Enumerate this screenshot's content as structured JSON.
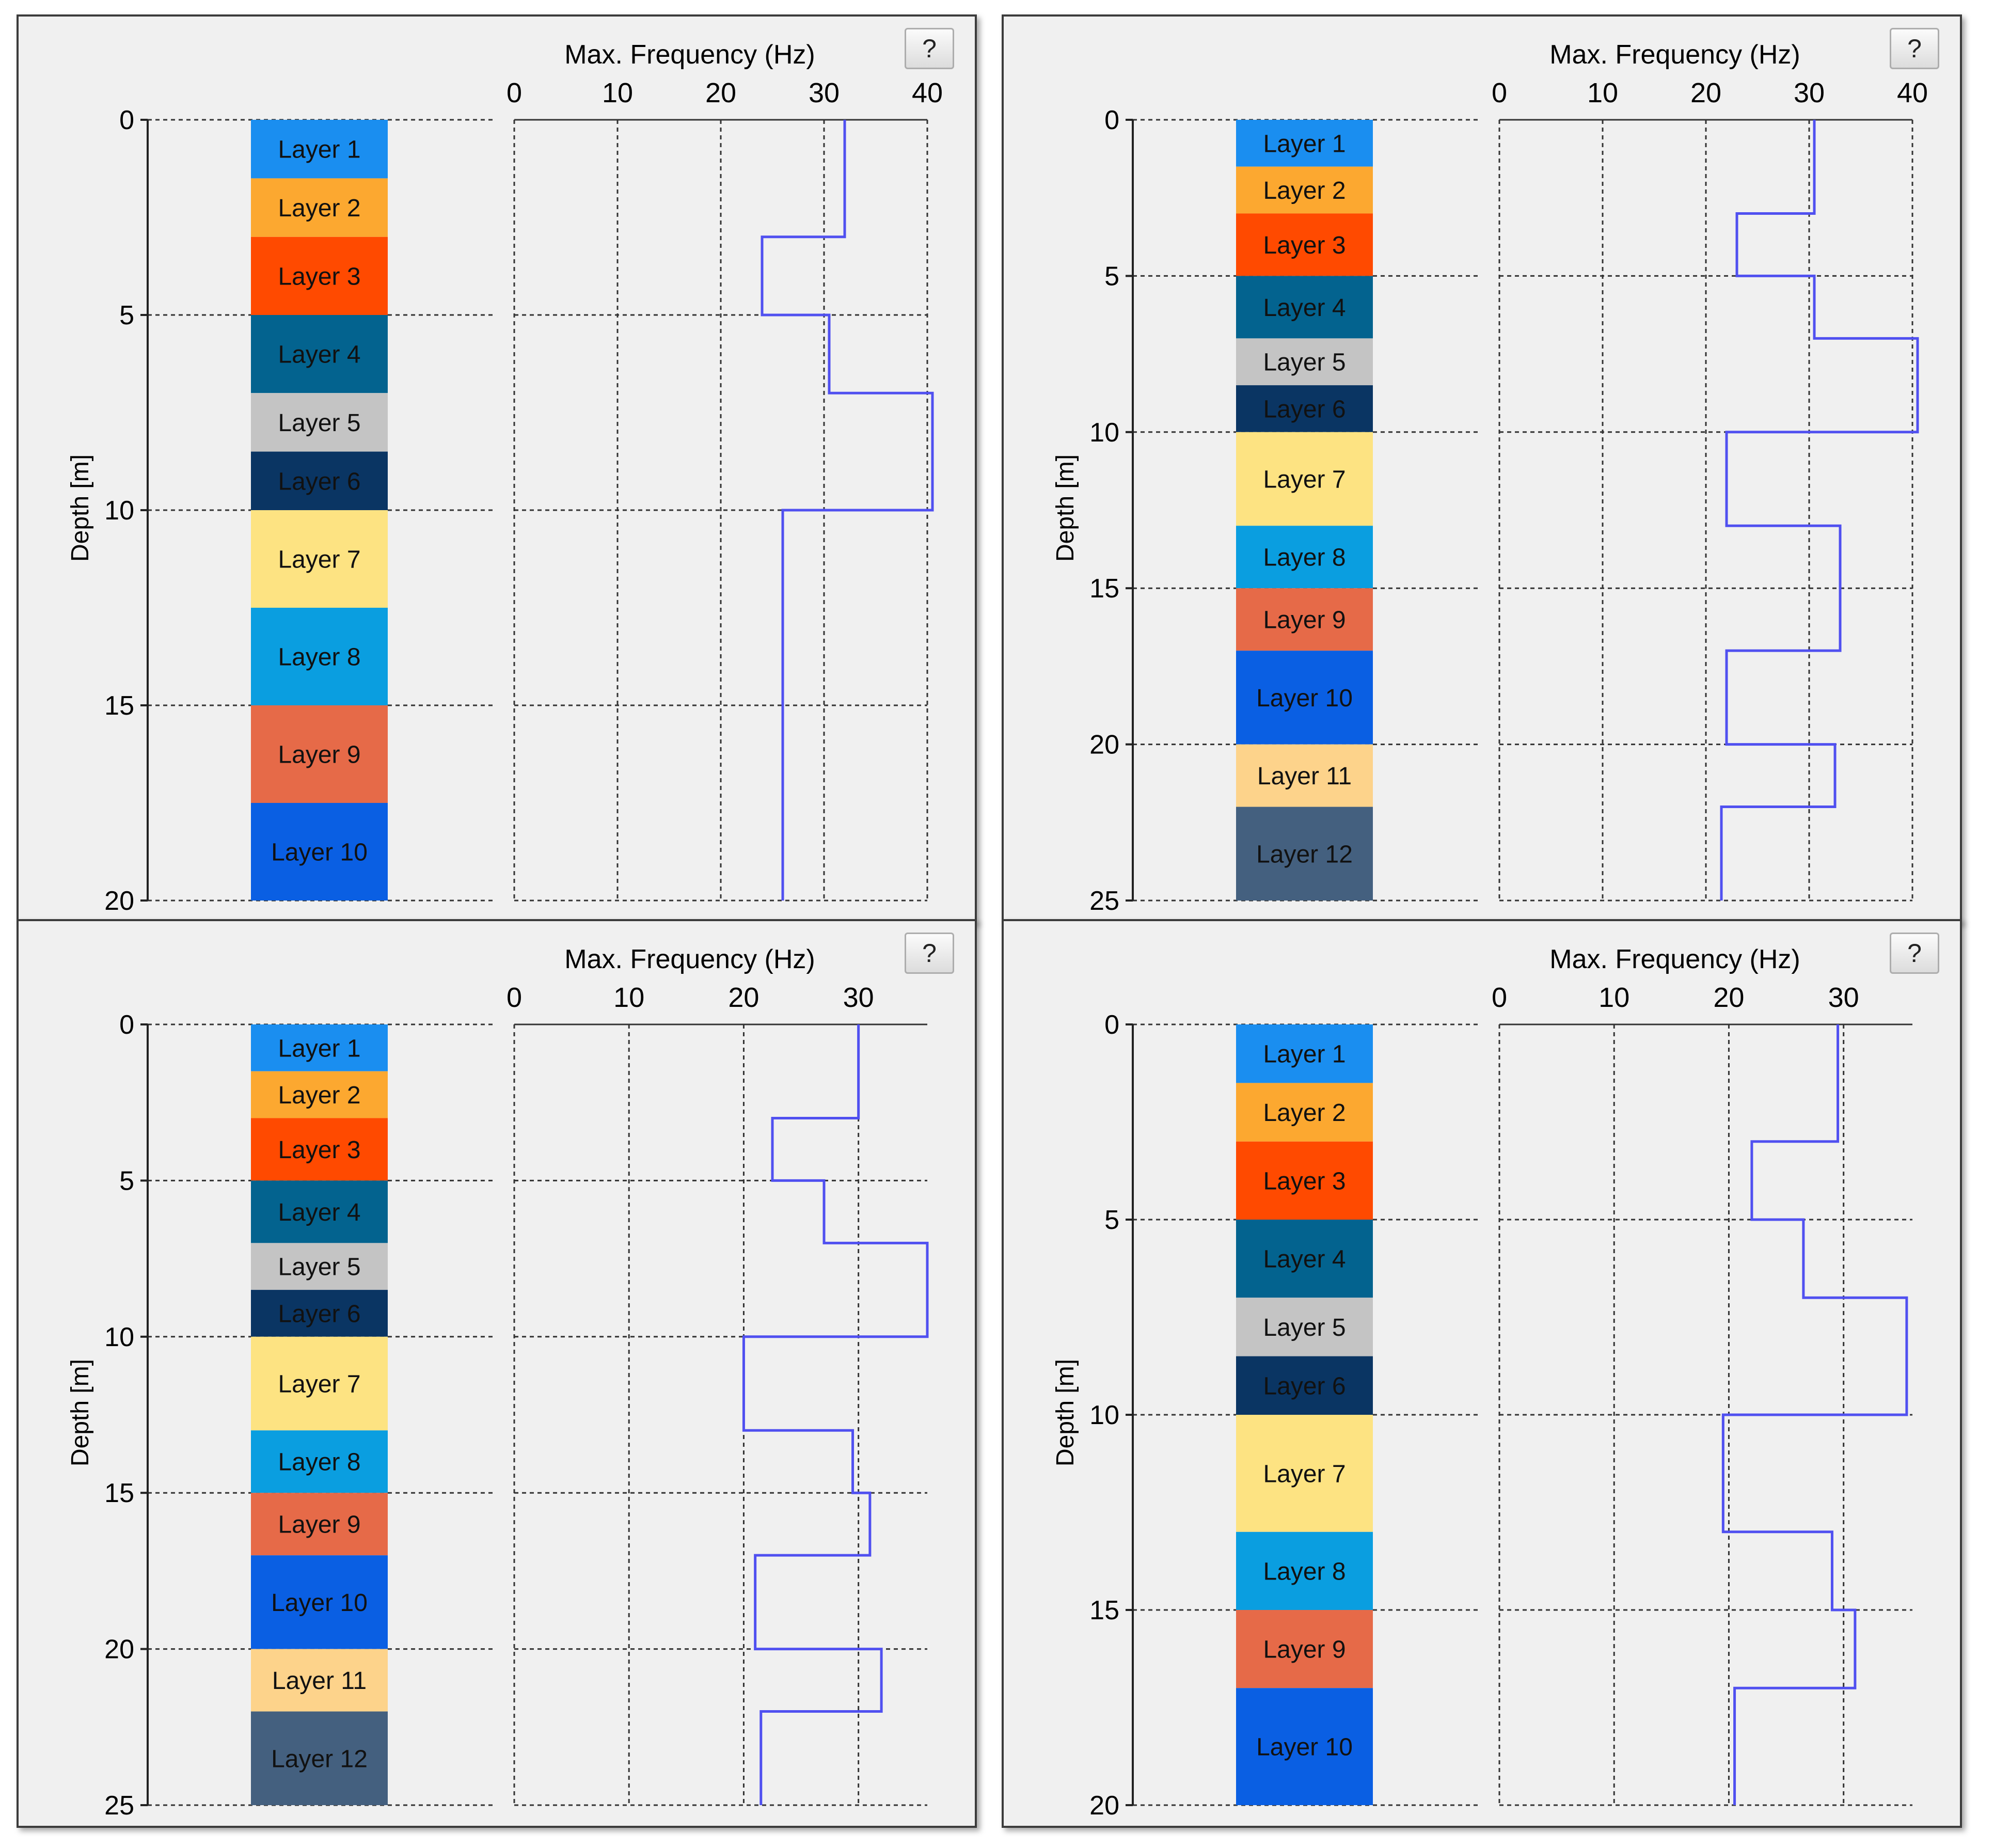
{
  "chart_data": [
    {
      "type": "step-line",
      "title": "Max. Frequency (Hz)",
      "ylabel": "Depth [m]",
      "help_label": "?",
      "depth_range": [
        0,
        20
      ],
      "depth_ticks": [
        0,
        5,
        10,
        15,
        20
      ],
      "freq_range": [
        0,
        40
      ],
      "freq_ticks": [
        0,
        10,
        20,
        30,
        40
      ],
      "line_color": "#5050f0",
      "layers": [
        {
          "label": "Layer 1",
          "top": 0,
          "bottom": 1.5,
          "color": "#1a8ef0"
        },
        {
          "label": "Layer 2",
          "top": 1.5,
          "bottom": 3.0,
          "color": "#fca830"
        },
        {
          "label": "Layer 3",
          "top": 3.0,
          "bottom": 5.0,
          "color": "#ff4a00"
        },
        {
          "label": "Layer 4",
          "top": 5.0,
          "bottom": 7.0,
          "color": "#03638f"
        },
        {
          "label": "Layer 5",
          "top": 7.0,
          "bottom": 8.5,
          "color": "#c4c4c4"
        },
        {
          "label": "Layer 6",
          "top": 8.5,
          "bottom": 10.0,
          "color": "#0a3563"
        },
        {
          "label": "Layer 7",
          "top": 10.0,
          "bottom": 12.5,
          "color": "#fde382"
        },
        {
          "label": "Layer 8",
          "top": 12.5,
          "bottom": 15.0,
          "color": "#0a9ee0"
        },
        {
          "label": "Layer 9",
          "top": 15.0,
          "bottom": 17.5,
          "color": "#e66a48"
        },
        {
          "label": "Layer 10",
          "top": 17.5,
          "bottom": 20.0,
          "color": "#0a5fe3"
        }
      ],
      "freq_profile": [
        {
          "top": 0,
          "bottom": 3.0,
          "freq": 32
        },
        {
          "top": 3.0,
          "bottom": 5.0,
          "freq": 24
        },
        {
          "top": 5.0,
          "bottom": 7.0,
          "freq": 30.5
        },
        {
          "top": 7.0,
          "bottom": 10.0,
          "freq": 40.5
        },
        {
          "top": 10.0,
          "bottom": 20.0,
          "freq": 26
        }
      ]
    },
    {
      "type": "step-line",
      "title": "Max. Frequency (Hz)",
      "ylabel": "Depth [m]",
      "help_label": "?",
      "depth_range": [
        0,
        25
      ],
      "depth_ticks": [
        0,
        5,
        10,
        15,
        20,
        25
      ],
      "freq_range": [
        0,
        40
      ],
      "freq_ticks": [
        0,
        10,
        20,
        30,
        40
      ],
      "line_color": "#5050f0",
      "layers": [
        {
          "label": "Layer 1",
          "top": 0,
          "bottom": 1.5,
          "color": "#1a8ef0"
        },
        {
          "label": "Layer 2",
          "top": 1.5,
          "bottom": 3.0,
          "color": "#fca830"
        },
        {
          "label": "Layer 3",
          "top": 3.0,
          "bottom": 5.0,
          "color": "#ff4a00"
        },
        {
          "label": "Layer 4",
          "top": 5.0,
          "bottom": 7.0,
          "color": "#03638f"
        },
        {
          "label": "Layer 5",
          "top": 7.0,
          "bottom": 8.5,
          "color": "#c4c4c4"
        },
        {
          "label": "Layer 6",
          "top": 8.5,
          "bottom": 10.0,
          "color": "#0a3563"
        },
        {
          "label": "Layer 7",
          "top": 10.0,
          "bottom": 13.0,
          "color": "#fde382"
        },
        {
          "label": "Layer 8",
          "top": 13.0,
          "bottom": 15.0,
          "color": "#0a9ee0"
        },
        {
          "label": "Layer 9",
          "top": 15.0,
          "bottom": 17.0,
          "color": "#e66a48"
        },
        {
          "label": "Layer 10",
          "top": 17.0,
          "bottom": 20.0,
          "color": "#0a5fe3"
        },
        {
          "label": "Layer 11",
          "top": 20.0,
          "bottom": 22.0,
          "color": "#fdd38b"
        },
        {
          "label": "Layer 12",
          "top": 22.0,
          "bottom": 25.0,
          "color": "#44607f"
        }
      ],
      "freq_profile": [
        {
          "top": 0,
          "bottom": 3.0,
          "freq": 30.5
        },
        {
          "top": 3.0,
          "bottom": 5.0,
          "freq": 23
        },
        {
          "top": 5.0,
          "bottom": 7.0,
          "freq": 30.5
        },
        {
          "top": 7.0,
          "bottom": 10.0,
          "freq": 40.5
        },
        {
          "top": 10.0,
          "bottom": 13.0,
          "freq": 22
        },
        {
          "top": 13.0,
          "bottom": 17.0,
          "freq": 33
        },
        {
          "top": 17.0,
          "bottom": 20.0,
          "freq": 22
        },
        {
          "top": 20.0,
          "bottom": 22.0,
          "freq": 32.5
        },
        {
          "top": 22.0,
          "bottom": 25.0,
          "freq": 21.5
        }
      ]
    },
    {
      "type": "step-line",
      "title": "Max. Frequency (Hz)",
      "ylabel": "Depth [m]",
      "help_label": "?",
      "depth_range": [
        0,
        25
      ],
      "depth_ticks": [
        0,
        5,
        10,
        15,
        20,
        25
      ],
      "freq_range": [
        0,
        36
      ],
      "freq_ticks": [
        0,
        10,
        20,
        30
      ],
      "line_color": "#5050f0",
      "layers": [
        {
          "label": "Layer 1",
          "top": 0,
          "bottom": 1.5,
          "color": "#1a8ef0"
        },
        {
          "label": "Layer 2",
          "top": 1.5,
          "bottom": 3.0,
          "color": "#fca830"
        },
        {
          "label": "Layer 3",
          "top": 3.0,
          "bottom": 5.0,
          "color": "#ff4a00"
        },
        {
          "label": "Layer 4",
          "top": 5.0,
          "bottom": 7.0,
          "color": "#03638f"
        },
        {
          "label": "Layer 5",
          "top": 7.0,
          "bottom": 8.5,
          "color": "#c4c4c4"
        },
        {
          "label": "Layer 6",
          "top": 8.5,
          "bottom": 10.0,
          "color": "#0a3563"
        },
        {
          "label": "Layer 7",
          "top": 10.0,
          "bottom": 13.0,
          "color": "#fde382"
        },
        {
          "label": "Layer 8",
          "top": 13.0,
          "bottom": 15.0,
          "color": "#0a9ee0"
        },
        {
          "label": "Layer 9",
          "top": 15.0,
          "bottom": 17.0,
          "color": "#e66a48"
        },
        {
          "label": "Layer 10",
          "top": 17.0,
          "bottom": 20.0,
          "color": "#0a5fe3"
        },
        {
          "label": "Layer 11",
          "top": 20.0,
          "bottom": 22.0,
          "color": "#fdd38b"
        },
        {
          "label": "Layer 12",
          "top": 22.0,
          "bottom": 25.0,
          "color": "#44607f"
        }
      ],
      "freq_profile": [
        {
          "top": 0,
          "bottom": 3.0,
          "freq": 30
        },
        {
          "top": 3.0,
          "bottom": 5.0,
          "freq": 22.5
        },
        {
          "top": 5.0,
          "bottom": 7.0,
          "freq": 27
        },
        {
          "top": 7.0,
          "bottom": 10.0,
          "freq": 36
        },
        {
          "top": 10.0,
          "bottom": 13.0,
          "freq": 20
        },
        {
          "top": 13.0,
          "bottom": 15.0,
          "freq": 29.5
        },
        {
          "top": 15.0,
          "bottom": 17.0,
          "freq": 31
        },
        {
          "top": 17.0,
          "bottom": 20.0,
          "freq": 21
        },
        {
          "top": 20.0,
          "bottom": 22.0,
          "freq": 32
        },
        {
          "top": 22.0,
          "bottom": 25.0,
          "freq": 21.5
        }
      ]
    },
    {
      "type": "step-line",
      "title": "Max. Frequency (Hz)",
      "ylabel": "Depth [m]",
      "help_label": "?",
      "depth_range": [
        0,
        20
      ],
      "depth_ticks": [
        0,
        5,
        10,
        15,
        20
      ],
      "freq_range": [
        0,
        36
      ],
      "freq_ticks": [
        0,
        10,
        20,
        30
      ],
      "line_color": "#5050f0",
      "layers": [
        {
          "label": "Layer 1",
          "top": 0,
          "bottom": 1.5,
          "color": "#1a8ef0"
        },
        {
          "label": "Layer 2",
          "top": 1.5,
          "bottom": 3.0,
          "color": "#fca830"
        },
        {
          "label": "Layer 3",
          "top": 3.0,
          "bottom": 5.0,
          "color": "#ff4a00"
        },
        {
          "label": "Layer 4",
          "top": 5.0,
          "bottom": 7.0,
          "color": "#03638f"
        },
        {
          "label": "Layer 5",
          "top": 7.0,
          "bottom": 8.5,
          "color": "#c4c4c4"
        },
        {
          "label": "Layer 6",
          "top": 8.5,
          "bottom": 10.0,
          "color": "#0a3563"
        },
        {
          "label": "Layer 7",
          "top": 10.0,
          "bottom": 13.0,
          "color": "#fde382"
        },
        {
          "label": "Layer 8",
          "top": 13.0,
          "bottom": 15.0,
          "color": "#0a9ee0"
        },
        {
          "label": "Layer 9",
          "top": 15.0,
          "bottom": 17.0,
          "color": "#e66a48"
        },
        {
          "label": "Layer 10",
          "top": 17.0,
          "bottom": 20.0,
          "color": "#0a5fe3"
        }
      ],
      "freq_profile": [
        {
          "top": 0,
          "bottom": 3.0,
          "freq": 29.5
        },
        {
          "top": 3.0,
          "bottom": 5.0,
          "freq": 22
        },
        {
          "top": 5.0,
          "bottom": 7.0,
          "freq": 26.5
        },
        {
          "top": 7.0,
          "bottom": 10.0,
          "freq": 35.5
        },
        {
          "top": 10.0,
          "bottom": 13.0,
          "freq": 19.5
        },
        {
          "top": 13.0,
          "bottom": 15.0,
          "freq": 29
        },
        {
          "top": 15.0,
          "bottom": 17.0,
          "freq": 31
        },
        {
          "top": 17.0,
          "bottom": 20.0,
          "freq": 20.5
        }
      ]
    }
  ]
}
